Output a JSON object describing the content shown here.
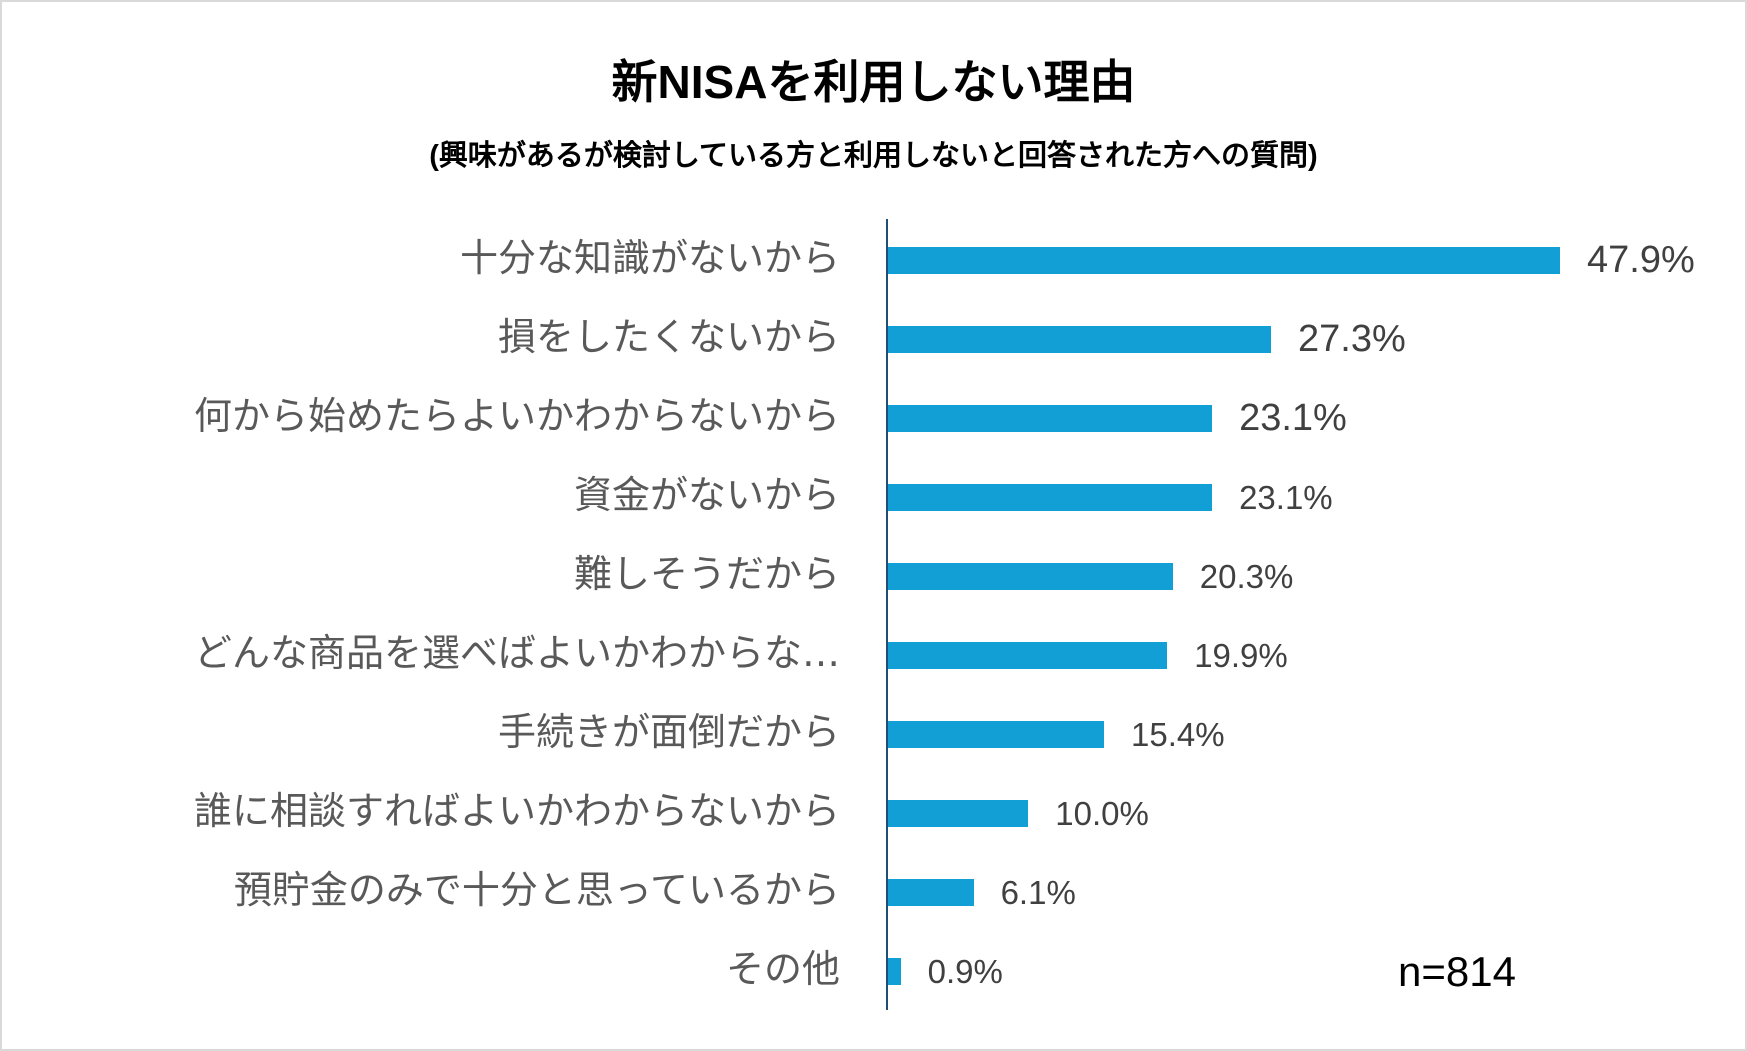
{
  "chart_data": {
    "type": "bar",
    "orientation": "horizontal",
    "title": "新NISAを利用しない理由",
    "subtitle": "(興味があるが検討している方と利用しないと回答された方への質問)",
    "categories": [
      "十分な知識がないから",
      "損をしたくないから",
      "何から始めたらよいかわからないから",
      "資金がないから",
      "難しそうだから",
      "どんな商品を選べばよいかわからな…",
      "手続きが面倒だから",
      "誰に相談すればよいかわからないから",
      "預貯金のみで十分と思っているから",
      "その他"
    ],
    "values": [
      47.9,
      27.3,
      23.1,
      23.1,
      20.3,
      19.9,
      15.4,
      10.0,
      6.1,
      0.9
    ],
    "data_labels": [
      "47.9%",
      "27.3%",
      "23.1%",
      "23.1%",
      "20.3%",
      "19.9%",
      "15.4%",
      "10.0%",
      "6.1%",
      "0.9%"
    ],
    "unit": "%",
    "grid": false,
    "legend": "none",
    "bar_color": "#119fd6",
    "annotation": "n=814"
  }
}
